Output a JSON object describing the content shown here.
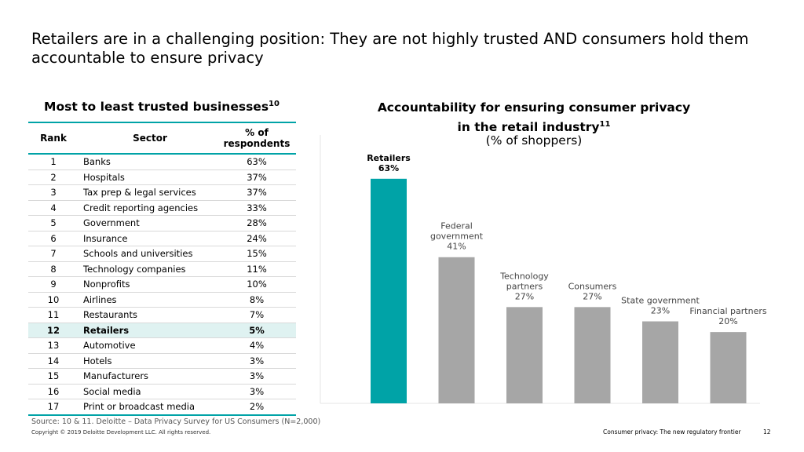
{
  "slide": {
    "title": "Retailers are in a challenging position: They are not highly trusted AND consumers hold them accountable to ensure privacy"
  },
  "table": {
    "title": "Most to least trusted businesses",
    "title_sup": "10",
    "headers": {
      "rank": "Rank",
      "sector": "Sector",
      "pct": "% of respondents"
    },
    "rows": [
      {
        "rank": "1",
        "sector": "Banks",
        "pct": "63%"
      },
      {
        "rank": "2",
        "sector": "Hospitals",
        "pct": "37%"
      },
      {
        "rank": "3",
        "sector": "Tax prep & legal services",
        "pct": "37%"
      },
      {
        "rank": "4",
        "sector": "Credit reporting agencies",
        "pct": "33%"
      },
      {
        "rank": "5",
        "sector": "Government",
        "pct": "28%"
      },
      {
        "rank": "6",
        "sector": "Insurance",
        "pct": "24%"
      },
      {
        "rank": "7",
        "sector": "Schools and universities",
        "pct": "15%"
      },
      {
        "rank": "8",
        "sector": "Technology companies",
        "pct": "11%"
      },
      {
        "rank": "9",
        "sector": "Nonprofits",
        "pct": "10%"
      },
      {
        "rank": "10",
        "sector": "Airlines",
        "pct": "8%"
      },
      {
        "rank": "11",
        "sector": "Restaurants",
        "pct": "7%"
      },
      {
        "rank": "12",
        "sector": "Retailers",
        "pct": "5%",
        "highlight": true
      },
      {
        "rank": "13",
        "sector": "Automotive",
        "pct": "4%"
      },
      {
        "rank": "14",
        "sector": "Hotels",
        "pct": "3%"
      },
      {
        "rank": "15",
        "sector": "Manufacturers",
        "pct": "3%"
      },
      {
        "rank": "16",
        "sector": "Social media",
        "pct": "3%"
      },
      {
        "rank": "17",
        "sector": "Print or broadcast media",
        "pct": "2%"
      }
    ]
  },
  "chart_data": {
    "type": "bar",
    "title": "Accountability for ensuring consumer privacy in the retail industry",
    "title_sup": "11",
    "subtitle": "(% of shoppers)",
    "xlabel": "",
    "ylabel": "",
    "ylim": [
      0,
      70
    ],
    "grid": false,
    "categories": [
      "Retailers",
      "Federal government",
      "Technology partners",
      "Consumers",
      "State government",
      "Financial partners"
    ],
    "category_label_lines": [
      [
        "Retailers"
      ],
      [
        "Federal",
        "government"
      ],
      [
        "Technology",
        "partners"
      ],
      [
        "Consumers"
      ],
      [
        "State government"
      ],
      [
        "Financial partners"
      ]
    ],
    "values": [
      63,
      41,
      27,
      27,
      23,
      20
    ],
    "value_labels": [
      "63%",
      "41%",
      "27%",
      "27%",
      "23%",
      "20%"
    ],
    "bar_colors": [
      "#00a3a7",
      "#a6a6a6",
      "#a6a6a6",
      "#a6a6a6",
      "#a6a6a6",
      "#a6a6a6"
    ],
    "highlight_index": 0
  },
  "footer": {
    "source": "Source: 10 & 11. Deloitte – Data Privacy Survey for US Consumers (N=2,000)",
    "copyright": "Copyright © 2019 Deloitte Development LLC. All rights reserved.",
    "title": "Consumer privacy: The new regulatory frontier",
    "page": "12"
  },
  "colors": {
    "accent": "#00a3a7",
    "highlight_row": "#dff2f1",
    "bar_gray": "#a6a6a6"
  }
}
